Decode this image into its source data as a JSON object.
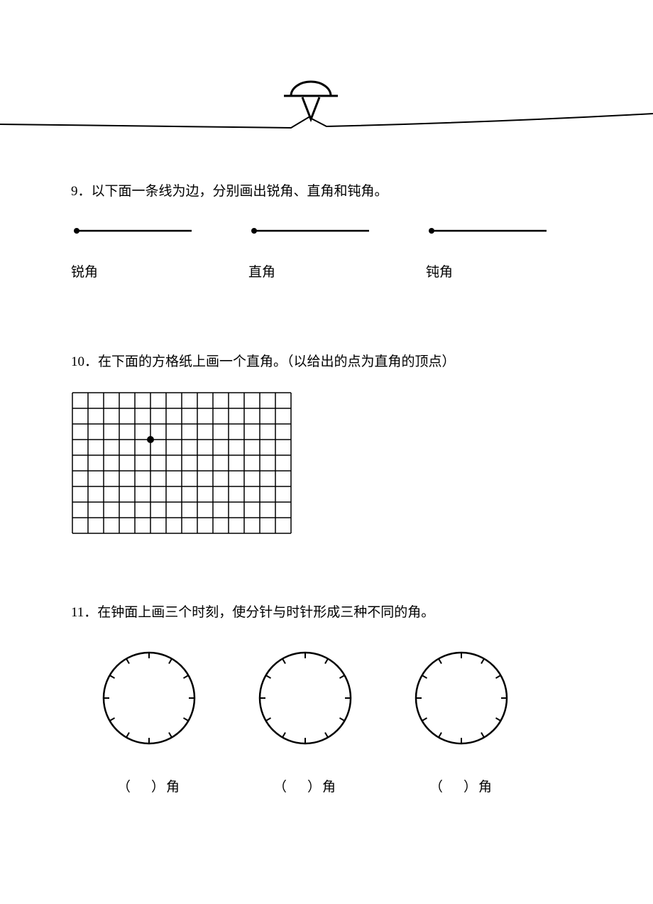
{
  "colors": {
    "stroke": "#000000",
    "bg": "#ffffff"
  },
  "header": {
    "line_stroke_width": 2,
    "cap_stroke_width": 3
  },
  "q9": {
    "text": "9．以下面一条线为边，分别画出锐角、直角和钝角。",
    "labels": [
      "锐角",
      "直角",
      "钝角"
    ],
    "ray": {
      "dot_radius": 4,
      "line_width": 2.5,
      "length": 170
    }
  },
  "q10": {
    "text": "10．在下面的方格纸上画一个直角。（以给出的点为直角的顶点）",
    "grid": {
      "cols": 14,
      "rows": 9,
      "cell": 22,
      "line_width": 1.5,
      "dot_col": 5,
      "dot_row": 3,
      "dot_radius": 5
    }
  },
  "q11": {
    "text": "11．在钟面上画三个时刻，使分针与时针形成三种不同的角。",
    "clock": {
      "radius": 64,
      "stroke_width": 2.5,
      "tick_count": 12,
      "tick_length": 8,
      "tick_width": 2
    },
    "label_prefix": "（",
    "label_suffix": "）角"
  }
}
